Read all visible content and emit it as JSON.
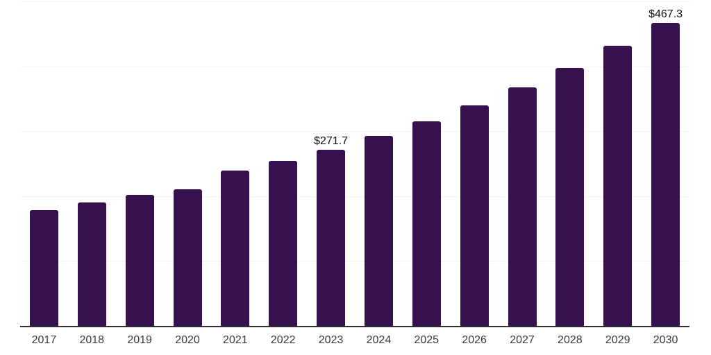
{
  "chart_data": {
    "type": "bar",
    "title": "",
    "xlabel": "",
    "ylabel": "",
    "categories": [
      "2017",
      "2018",
      "2019",
      "2020",
      "2021",
      "2022",
      "2023",
      "2024",
      "2025",
      "2026",
      "2027",
      "2028",
      "2029",
      "2030"
    ],
    "values": [
      178.7,
      190.5,
      201.9,
      210.1,
      239.3,
      254.6,
      271.7,
      292.7,
      315.2,
      339.6,
      367.5,
      397.7,
      431.5,
      467.3
    ],
    "data_labels": [
      "",
      "",
      "",
      "",
      "",
      "",
      "$271.7",
      "",
      "",
      "",
      "",
      "",
      "",
      "$467.3"
    ],
    "ylim": [
      0,
      500
    ],
    "gridline_values": [
      100,
      200,
      300,
      400,
      500
    ],
    "grid": true,
    "legend": "none",
    "colors": {
      "bar": "#36114d",
      "gridline": "#f4f4f4",
      "axis_line": "#2e2e2e",
      "tick_label": "#3a3a3a",
      "data_label": "#111111",
      "background": "#ffffff"
    }
  }
}
